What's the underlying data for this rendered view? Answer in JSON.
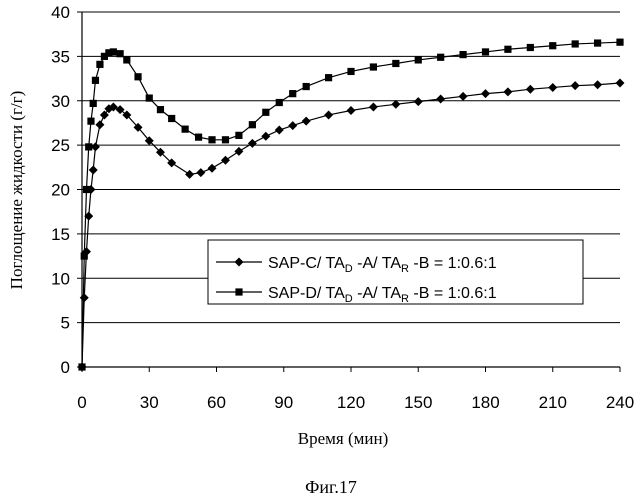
{
  "chart_data": {
    "type": "line",
    "xlabel": "Время (мин)",
    "ylabel": "Поглощение жидкости (г/г)",
    "caption": "Фиг.17",
    "xlim": [
      0,
      240
    ],
    "ylim": [
      0,
      40
    ],
    "xticks": [
      0,
      30,
      60,
      90,
      120,
      150,
      180,
      210,
      240
    ],
    "yticks": [
      0,
      5,
      10,
      15,
      20,
      25,
      30,
      35,
      40
    ],
    "grid": "horizontal",
    "legend_position": "center-right",
    "series": [
      {
        "name": "SAP-C/ TA_D -A/ TA_R -B = 1:0.6:1",
        "legend": {
          "pre": "SAP-C/ TA",
          "sub1": "D",
          "mid": " -A/ TA",
          "sub2": "R",
          "post": " -B = 1:0.6:1"
        },
        "marker": "diamond",
        "color": "#000000",
        "x": [
          0,
          1,
          2,
          3,
          4,
          5,
          6,
          8,
          10,
          12,
          14,
          17,
          20,
          25,
          30,
          35,
          40,
          48,
          53,
          58,
          64,
          70,
          76,
          82,
          88,
          94,
          100,
          110,
          120,
          130,
          140,
          150,
          160,
          170,
          180,
          190,
          200,
          210,
          220,
          230,
          240
        ],
        "y": [
          0,
          7.8,
          13,
          17,
          20,
          22.2,
          24.8,
          27.3,
          28.4,
          29.1,
          29.3,
          29.0,
          28.4,
          27.0,
          25.5,
          24.2,
          23.0,
          21.7,
          21.9,
          22.4,
          23.3,
          24.3,
          25.2,
          26.0,
          26.7,
          27.2,
          27.7,
          28.4,
          28.9,
          29.3,
          29.6,
          29.9,
          30.2,
          30.5,
          30.8,
          31.0,
          31.3,
          31.5,
          31.7,
          31.8,
          32.0
        ]
      },
      {
        "name": "SAP-D/ TA_D -A/ TA_R -B = 1:0.6:1",
        "legend": {
          "pre": "SAP-D/ TA",
          "sub1": "D",
          "mid": " -A/ TA",
          "sub2": "R",
          "post": " -B = 1:0.6:1"
        },
        "marker": "square",
        "color": "#000000",
        "x": [
          0,
          1,
          2,
          3,
          4,
          5,
          6,
          8,
          10,
          12,
          14,
          17,
          20,
          25,
          30,
          35,
          40,
          46,
          52,
          58,
          64,
          70,
          76,
          82,
          88,
          94,
          100,
          110,
          120,
          130,
          140,
          150,
          160,
          170,
          180,
          190,
          200,
          210,
          220,
          230,
          240
        ],
        "y": [
          0,
          12.5,
          20,
          24.8,
          27.7,
          29.7,
          32.3,
          34.1,
          35.0,
          35.4,
          35.5,
          35.3,
          34.6,
          32.7,
          30.3,
          29.0,
          28.0,
          26.8,
          25.9,
          25.6,
          25.6,
          26.1,
          27.3,
          28.7,
          29.8,
          30.8,
          31.6,
          32.6,
          33.3,
          33.8,
          34.2,
          34.6,
          34.9,
          35.2,
          35.5,
          35.8,
          36.0,
          36.2,
          36.4,
          36.5,
          36.6
        ]
      }
    ]
  }
}
